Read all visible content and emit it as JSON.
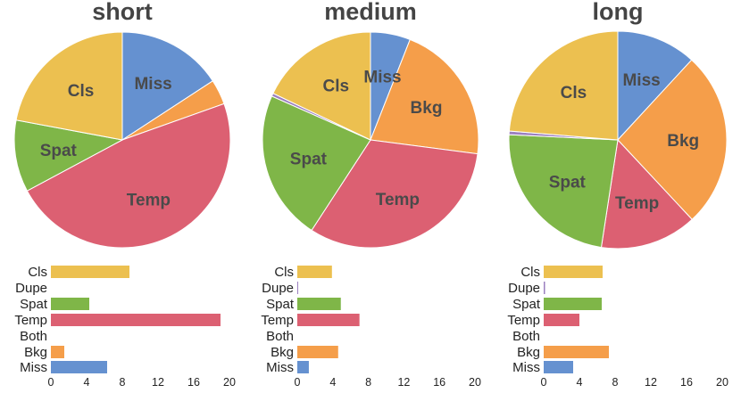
{
  "colors": {
    "Miss": "#6591d0",
    "Bkg": "#f59e4a",
    "Both": "#5a9a5a",
    "Temp": "#dc6072",
    "Spat": "#7fb648",
    "Dupe": "#9b7fbf",
    "Cls": "#ecc050"
  },
  "chart_data": [
    {
      "type": "pie",
      "title": "short",
      "slice_order": [
        "Miss",
        "Bkg",
        "Both",
        "Temp",
        "Spat",
        "Dupe",
        "Cls"
      ],
      "bar_categories": [
        "Cls",
        "Dupe",
        "Spat",
        "Temp",
        "Both",
        "Bkg",
        "Miss"
      ],
      "values": {
        "Cls": 8.8,
        "Dupe": 0,
        "Spat": 4.3,
        "Temp": 19.0,
        "Both": 0,
        "Bkg": 1.5,
        "Miss": 6.3
      },
      "slice_labels": [
        "Miss",
        "Temp",
        "Spat",
        "Cls"
      ],
      "xticks": [
        0,
        4,
        8,
        12,
        16,
        20
      ],
      "xlim": [
        0,
        20
      ]
    },
    {
      "type": "pie",
      "title": "medium",
      "slice_order": [
        "Miss",
        "Bkg",
        "Both",
        "Temp",
        "Spat",
        "Dupe",
        "Cls"
      ],
      "bar_categories": [
        "Cls",
        "Dupe",
        "Spat",
        "Temp",
        "Both",
        "Bkg",
        "Miss"
      ],
      "values": {
        "Cls": 3.9,
        "Dupe": 0.1,
        "Spat": 4.9,
        "Temp": 7.0,
        "Both": 0,
        "Bkg": 4.6,
        "Miss": 1.3
      },
      "slice_labels": [
        "Miss",
        "Bkg",
        "Temp",
        "Spat",
        "Cls"
      ],
      "xticks": [
        0,
        4,
        8,
        12,
        16,
        20
      ],
      "xlim": [
        0,
        20
      ]
    },
    {
      "type": "pie",
      "title": "long",
      "slice_order": [
        "Miss",
        "Bkg",
        "Both",
        "Temp",
        "Spat",
        "Dupe",
        "Cls"
      ],
      "bar_categories": [
        "Cls",
        "Dupe",
        "Spat",
        "Temp",
        "Both",
        "Bkg",
        "Miss"
      ],
      "values": {
        "Cls": 6.6,
        "Dupe": 0.15,
        "Spat": 6.5,
        "Temp": 4.0,
        "Both": 0,
        "Bkg": 7.3,
        "Miss": 3.3
      },
      "slice_labels": [
        "Miss",
        "Bkg",
        "Temp",
        "Spat",
        "Cls"
      ],
      "xticks": [
        0,
        4,
        8,
        12,
        16,
        20
      ],
      "xlim": [
        0,
        20
      ]
    }
  ]
}
